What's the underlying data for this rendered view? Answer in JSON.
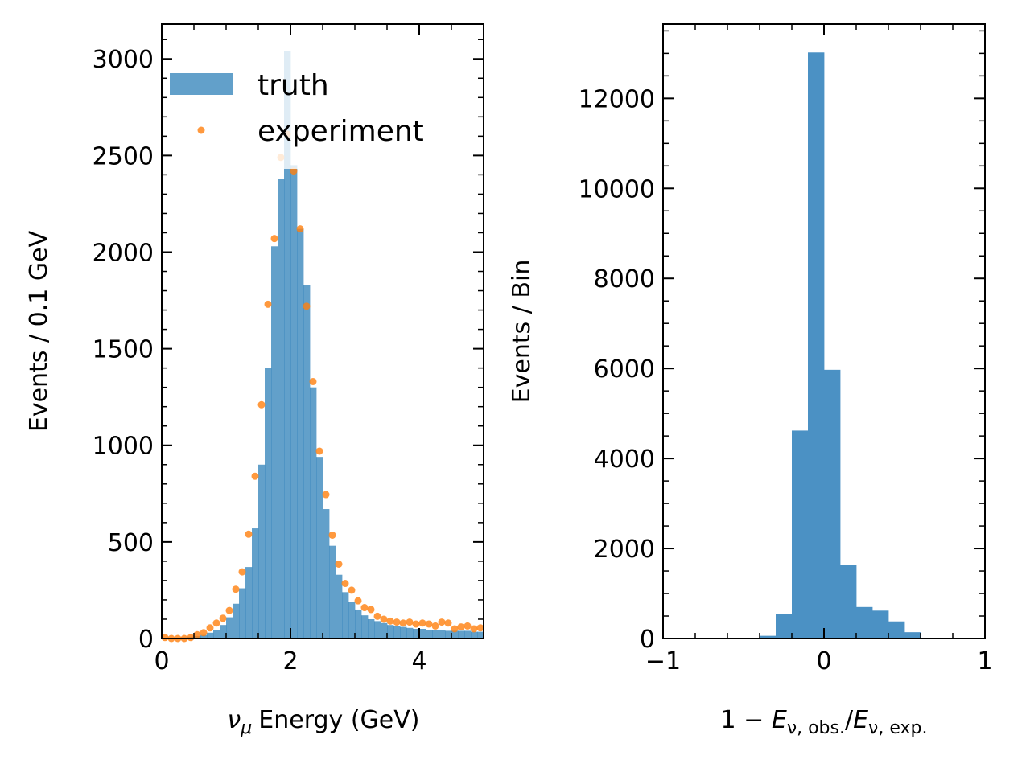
{
  "chart_data": [
    {
      "type": "bar",
      "panel": "left",
      "xlabel_main": "Energy (GeV)",
      "xlabel_nu": "ν",
      "xlabel_sub": "μ",
      "ylabel": "Events / 0.1 GeV",
      "xlim": [
        0,
        5
      ],
      "ylim": [
        0,
        3180
      ],
      "xticks": [
        0,
        2,
        4
      ],
      "xtick_labels": [
        "0",
        "2",
        "4"
      ],
      "yticks": [
        0,
        500,
        1000,
        1500,
        2000,
        2500,
        3000
      ],
      "ytick_labels": [
        "0",
        "500",
        "1000",
        "1500",
        "2000",
        "2500",
        "3000"
      ],
      "legend": {
        "position": "top-left",
        "entries": [
          "truth",
          "experiment"
        ]
      },
      "colors": {
        "truth": "#1f77b4",
        "experiment": "#ff7f0e"
      },
      "bin_width": 0.1,
      "series": [
        {
          "name": "truth",
          "kind": "histogram",
          "x": [
            0.05,
            0.15,
            0.25,
            0.35,
            0.45,
            0.55,
            0.65,
            0.75,
            0.85,
            0.95,
            1.05,
            1.15,
            1.25,
            1.35,
            1.45,
            1.55,
            1.65,
            1.75,
            1.85,
            1.95,
            2.05,
            2.15,
            2.25,
            2.35,
            2.45,
            2.55,
            2.65,
            2.75,
            2.85,
            2.95,
            3.05,
            3.15,
            3.25,
            3.35,
            3.45,
            3.55,
            3.65,
            3.75,
            3.85,
            3.95,
            4.05,
            4.15,
            4.25,
            4.35,
            4.45,
            4.55,
            4.65,
            4.75,
            4.85,
            4.95
          ],
          "values": [
            2,
            3,
            4,
            6,
            9,
            12,
            18,
            30,
            45,
            70,
            110,
            180,
            260,
            370,
            570,
            900,
            1400,
            2030,
            2380,
            3040,
            2450,
            2120,
            1830,
            1300,
            940,
            670,
            480,
            330,
            240,
            190,
            150,
            120,
            100,
            90,
            80,
            70,
            65,
            60,
            55,
            50,
            50,
            45,
            45,
            45,
            40,
            40,
            40,
            40,
            35,
            35
          ]
        },
        {
          "name": "experiment",
          "kind": "points",
          "x": [
            0.05,
            0.15,
            0.25,
            0.35,
            0.45,
            0.55,
            0.65,
            0.75,
            0.85,
            0.95,
            1.05,
            1.15,
            1.25,
            1.35,
            1.45,
            1.55,
            1.65,
            1.75,
            1.85,
            1.95,
            2.05,
            2.15,
            2.25,
            2.35,
            2.45,
            2.55,
            2.65,
            2.75,
            2.85,
            2.95,
            3.05,
            3.15,
            3.25,
            3.35,
            3.45,
            3.55,
            3.65,
            3.75,
            3.85,
            3.95,
            4.05,
            4.15,
            4.25,
            4.35,
            4.45,
            4.55,
            4.65,
            4.75,
            4.85,
            4.95
          ],
          "values": [
            5,
            0,
            0,
            0,
            5,
            20,
            30,
            55,
            80,
            105,
            145,
            255,
            345,
            540,
            840,
            1210,
            1730,
            2070,
            2490,
            2610,
            2420,
            2120,
            1720,
            1330,
            970,
            745,
            535,
            385,
            285,
            250,
            195,
            160,
            150,
            115,
            100,
            90,
            85,
            80,
            85,
            75,
            80,
            75,
            65,
            85,
            80,
            50,
            60,
            65,
            50,
            55
          ]
        }
      ]
    },
    {
      "type": "bar",
      "panel": "right",
      "xlabel": "1 − E_{ν, obs.}/E_{ν, exp.}",
      "xlabel_parts": {
        "lead": "1 − ",
        "E": "E",
        "sub1": "ν, obs.",
        "slash": "/",
        "sub2": "ν, exp."
      },
      "ylabel": "Events / Bin",
      "xlim": [
        -1,
        1
      ],
      "ylim": [
        0,
        13650
      ],
      "xticks": [
        -1,
        0,
        1
      ],
      "xtick_labels": [
        "−1",
        "0",
        "1"
      ],
      "yticks": [
        0,
        2000,
        4000,
        6000,
        8000,
        10000,
        12000
      ],
      "ytick_labels": [
        "0",
        "2000",
        "4000",
        "6000",
        "8000",
        "10000",
        "12000"
      ],
      "colors": {
        "bars": "#4b91c4"
      },
      "bin_edges": [
        -0.9,
        -0.8,
        -0.7,
        -0.6,
        -0.5,
        -0.4,
        -0.3,
        -0.2,
        -0.1,
        0.0,
        0.1,
        0.2,
        0.3,
        0.4,
        0.5,
        0.6,
        0.7,
        0.8,
        0.9
      ],
      "series": [
        {
          "values": [
            0,
            0,
            0,
            0,
            0,
            60,
            550,
            4620,
            13020,
            5970,
            1640,
            700,
            620,
            380,
            140,
            0,
            0,
            0
          ]
        }
      ]
    }
  ]
}
